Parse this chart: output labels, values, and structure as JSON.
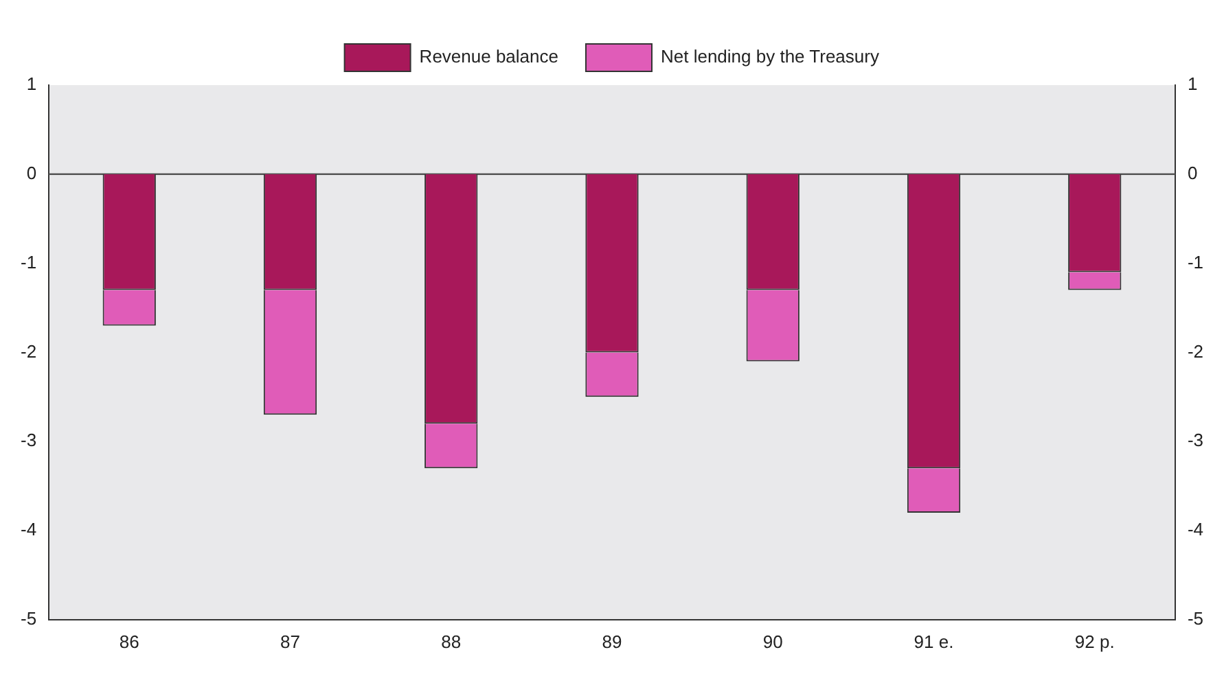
{
  "chart_data": {
    "type": "bar",
    "stacked": true,
    "categories": [
      "86",
      "87",
      "88",
      "89",
      "90",
      "91 e.",
      "92 p."
    ],
    "series": [
      {
        "name": "Revenue balance",
        "color": "#a8185a",
        "values": [
          -1.3,
          -1.3,
          -2.8,
          -2.0,
          -1.3,
          -3.3,
          -1.1
        ]
      },
      {
        "name": "Net lending by the Treasury",
        "color": "#e05cb8",
        "values": [
          -0.4,
          -1.4,
          -0.5,
          -0.5,
          -0.8,
          -0.5,
          -0.2
        ]
      }
    ],
    "ylim": [
      -5,
      1
    ],
    "yticks": [
      -5,
      -4,
      -3,
      -2,
      -1,
      0,
      1
    ],
    "y2lim": [
      -5,
      1
    ],
    "y2ticks": [
      -5,
      -4,
      -3,
      -2,
      -1,
      0,
      1
    ],
    "ref_lines": [
      {
        "axis": "y",
        "value": 0,
        "color": "#555555"
      }
    ],
    "grid": false,
    "legend": "top"
  }
}
